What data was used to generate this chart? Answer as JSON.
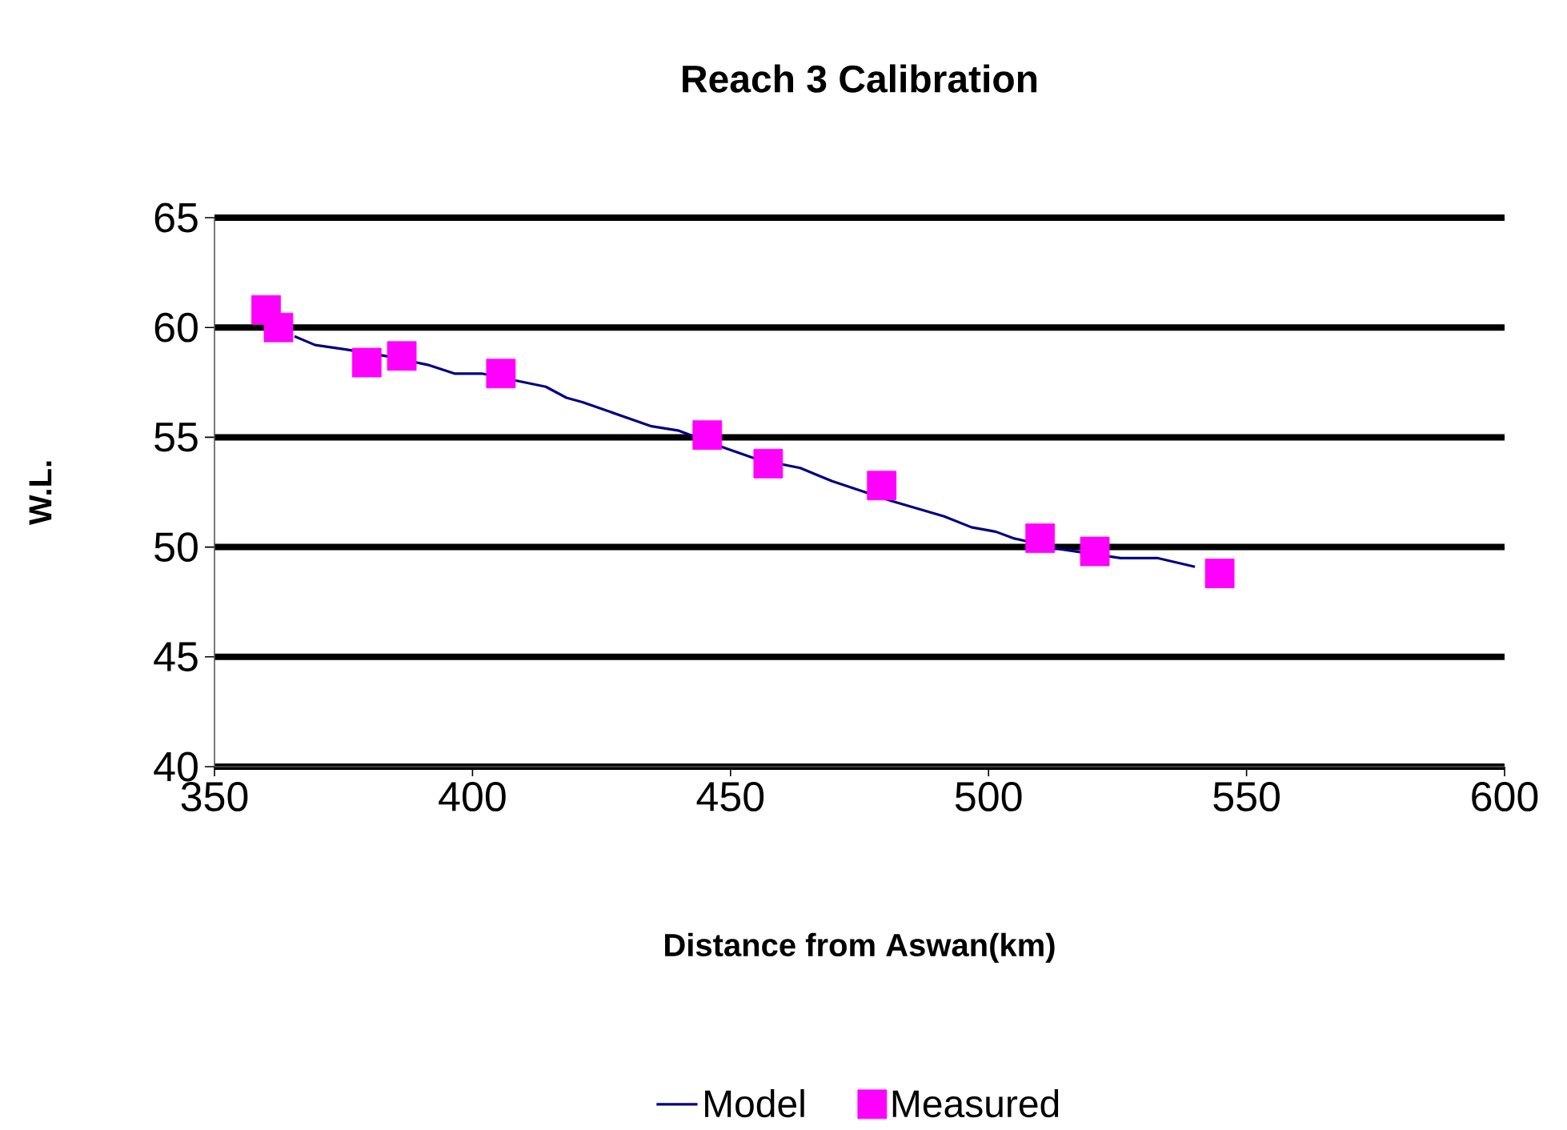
{
  "chart_data": {
    "type": "line",
    "title": "Reach 3 Calibration",
    "xlabel": "Distance from Aswan(km)",
    "ylabel": "W.L.",
    "xlim": [
      350,
      600
    ],
    "xticks": [
      350,
      400,
      450,
      500,
      550,
      600
    ],
    "ylim": [
      40,
      65
    ],
    "yticks": [
      40,
      45,
      50,
      55,
      60,
      65
    ],
    "grid": "y",
    "legend": "bottom",
    "series": [
      {
        "name": "Model",
        "marker": "none",
        "color": "#000080",
        "x": [
          365.5,
          369.5,
          375.4,
          383.2,
          391.3,
          396.5,
          401.8,
          414.2,
          418.2,
          421.3,
          434.7,
          440,
          449,
          455.1,
          463.5,
          469.7,
          481.2,
          491.4,
          496.7,
          501.4,
          504.8,
          514.1,
          525.6,
          532.7,
          540
        ],
        "values": [
          59.6,
          59.2,
          59.0,
          58.7,
          58.3,
          57.9,
          57.9,
          57.3,
          56.8,
          56.6,
          55.5,
          55.3,
          54.5,
          54.0,
          53.6,
          53.0,
          52.1,
          51.4,
          50.9,
          50.7,
          50.4,
          49.9,
          49.5,
          49.5,
          49.1
        ]
      },
      {
        "name": "Measured",
        "type": "scatter",
        "marker": "square",
        "color": "#ff00ff",
        "x": [
          360,
          362.4,
          379.5,
          386.3,
          405.5,
          445.5,
          457.3,
          479.3,
          510,
          520.6,
          544.8
        ],
        "values": [
          60.8,
          60.0,
          58.4,
          58.7,
          57.9,
          55.1,
          53.8,
          52.8,
          50.4,
          49.8,
          48.8
        ]
      }
    ]
  }
}
